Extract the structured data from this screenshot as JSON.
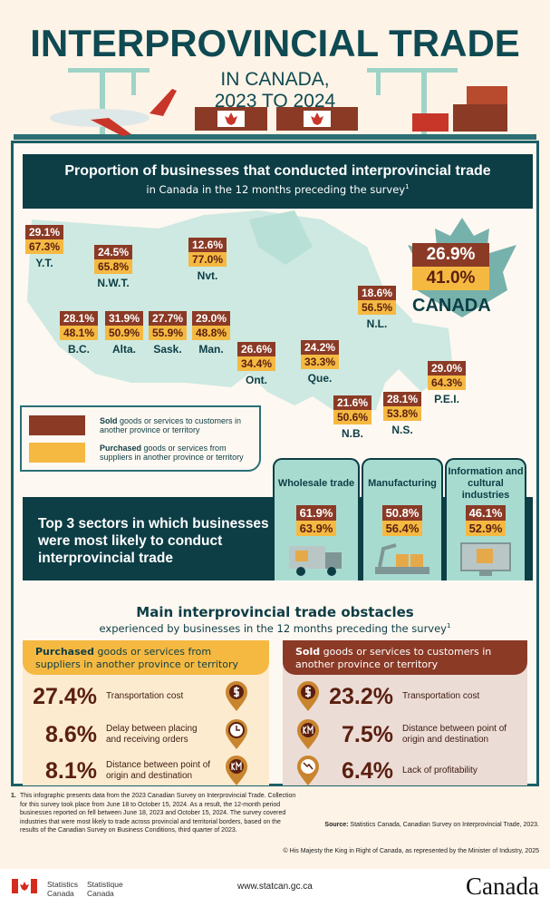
{
  "header": {
    "title": "INTERPROVINCIAL TRADE",
    "subtitle_line1": "IN CANADA,",
    "subtitle_line2": "2023 TO 2024"
  },
  "colors": {
    "sold": "#8b3a26",
    "purchased": "#f5b942",
    "dark_teal": "#0d3d45",
    "map": "#cde9e1"
  },
  "proportion": {
    "title": "Proportion of businesses that conducted interprovincial trade",
    "subtitle": "in Canada in the 12 months preceding the survey",
    "footnote_mark": "1",
    "regions": [
      {
        "name": "Y.T.",
        "sold": "29.1%",
        "purchased": "67.3%"
      },
      {
        "name": "N.W.T.",
        "sold": "24.5%",
        "purchased": "65.8%"
      },
      {
        "name": "Nvt.",
        "sold": "12.6%",
        "purchased": "77.0%"
      },
      {
        "name": "B.C.",
        "sold": "28.1%",
        "purchased": "48.1%"
      },
      {
        "name": "Alta.",
        "sold": "31.9%",
        "purchased": "50.9%"
      },
      {
        "name": "Sask.",
        "sold": "27.7%",
        "purchased": "55.9%"
      },
      {
        "name": "Man.",
        "sold": "29.0%",
        "purchased": "48.8%"
      },
      {
        "name": "Ont.",
        "sold": "26.6%",
        "purchased": "34.4%"
      },
      {
        "name": "Que.",
        "sold": "24.2%",
        "purchased": "33.3%"
      },
      {
        "name": "N.L.",
        "sold": "18.6%",
        "purchased": "56.5%"
      },
      {
        "name": "P.E.I.",
        "sold": "29.0%",
        "purchased": "64.3%"
      },
      {
        "name": "N.S.",
        "sold": "28.1%",
        "purchased": "53.8%"
      },
      {
        "name": "N.B.",
        "sold": "21.6%",
        "purchased": "50.6%"
      }
    ],
    "canada": {
      "name": "CANADA",
      "sold": "26.9%",
      "purchased": "41.0%"
    },
    "legend": {
      "sold_bold": "Sold",
      "sold_rest": " goods or services to customers in another province or territory",
      "purchased_bold": "Purchased",
      "purchased_rest": " goods or services from suppliers in another province or territory"
    }
  },
  "sectors": {
    "title": "Top 3 sectors in which businesses were most likely to conduct interprovincial trade",
    "items": [
      {
        "name": "Wholesale trade",
        "sold": "61.9%",
        "purchased": "63.9%",
        "icon": "delivery-truck-icon"
      },
      {
        "name": "Manufacturing",
        "sold": "50.8%",
        "purchased": "56.4%",
        "icon": "robotic-arm-icon"
      },
      {
        "name": "Information and cultural industries",
        "sold": "46.1%",
        "purchased": "52.9%",
        "icon": "computer-icon"
      }
    ]
  },
  "obstacles": {
    "title": "Main interprovincial trade obstacles",
    "subtitle": "experienced by businesses in the 12 months preceding the survey",
    "footnote_mark": "1",
    "purchased": {
      "header_bold": "Purchased",
      "header_rest": " goods or services from suppliers in another province or territory",
      "items": [
        {
          "value": "27.4%",
          "label": "Transportation cost",
          "icon": "dollar-pin-icon"
        },
        {
          "value": "8.6%",
          "label": "Delay between placing and receiving orders",
          "icon": "clock-pin-icon"
        },
        {
          "value": "8.1%",
          "label": "Distance between point of origin and destination",
          "icon": "km-pin-icon"
        }
      ]
    },
    "sold": {
      "header_bold": "Sold",
      "header_rest": " goods or services to customers in another province or territory",
      "items": [
        {
          "value": "23.2%",
          "label": "Transportation cost",
          "icon": "dollar-pin-icon"
        },
        {
          "value": "7.5%",
          "label": "Distance between point of origin and destination",
          "icon": "km-pin-icon"
        },
        {
          "value": "6.4%",
          "label": "Lack of profitability",
          "icon": "declining-chart-pin-icon"
        }
      ]
    }
  },
  "footnotes": {
    "number": "1.",
    "text": "This infographic presents data from the 2023 Canadian Survey on Interprovincial Trade. Collection for this survey took place from June 18 to October 15, 2024. As a result, the 12-month period businesses reported on fell between June 18, 2023 and October 15, 2024. The survey covered industries that were most likely to trade across provincial and territorial borders, based on the results of the Canadian Survey on Business Conditions, third quarter of 2023.",
    "source_label": "Source:",
    "source_text": " Statistics Canada, Canadian Survey on Interprovincial Trade, 2023.",
    "copyright": "© His Majesty the King in Right of Canada, as represented by the Minister of Industry, 2025"
  },
  "footer": {
    "agency_en_1": "Statistics",
    "agency_en_2": "Canada",
    "agency_fr_1": "Statistique",
    "agency_fr_2": "Canada",
    "url": "www.statcan.gc.ca",
    "wordmark": "Canada"
  }
}
